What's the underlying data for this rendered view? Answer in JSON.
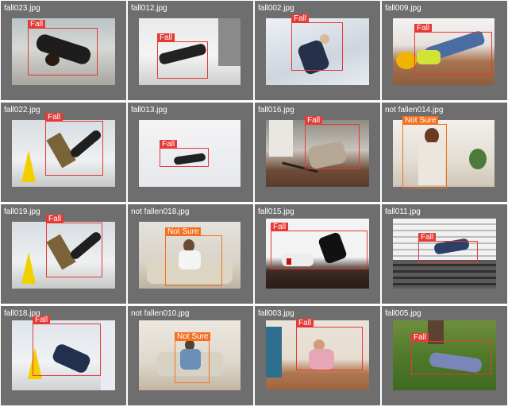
{
  "colors": {
    "fall": "#e53935",
    "not_sure": "#f37021",
    "tile_bg": "#6e6e6e"
  },
  "labels": {
    "fall": "Fall",
    "not_sure": "Not Sure"
  },
  "tiles": [
    {
      "file": "fall023.jpg",
      "label": "Fall",
      "scene": "street"
    },
    {
      "file": "fall012.jpg",
      "label": "Fall",
      "scene": "kitchen"
    },
    {
      "file": "fall002.jpg",
      "label": "Fall",
      "scene": "snow-stairs"
    },
    {
      "file": "fall009.jpg",
      "label": "Fall",
      "scene": "wood-floor"
    },
    {
      "file": "fall022.jpg",
      "label": "Fall",
      "scene": "wet-floor"
    },
    {
      "file": "fall013.jpg",
      "label": "Fall",
      "scene": "snow"
    },
    {
      "file": "fall016.jpg",
      "label": "Fall",
      "scene": "living-room"
    },
    {
      "file": "not fallen014.jpg",
      "label": "Not Sure",
      "scene": "kitchen-standing"
    },
    {
      "file": "fall019.jpg",
      "label": "Fall",
      "scene": "wet-floor"
    },
    {
      "file": "not fallen018.jpg",
      "label": "Not Sure",
      "scene": "sofa"
    },
    {
      "file": "fall015.jpg",
      "label": "Fall",
      "scene": "dark-room"
    },
    {
      "file": "fall011.jpg",
      "label": "Fall",
      "scene": "stairs"
    },
    {
      "file": "fall018.jpg",
      "label": "Fall",
      "scene": "wet-floor"
    },
    {
      "file": "not fallen010.jpg",
      "label": "Not Sure",
      "scene": "sofa"
    },
    {
      "file": "fall003.jpg",
      "label": "Fall",
      "scene": "room"
    },
    {
      "file": "fall005.jpg",
      "label": "Fall",
      "scene": "grass"
    }
  ]
}
